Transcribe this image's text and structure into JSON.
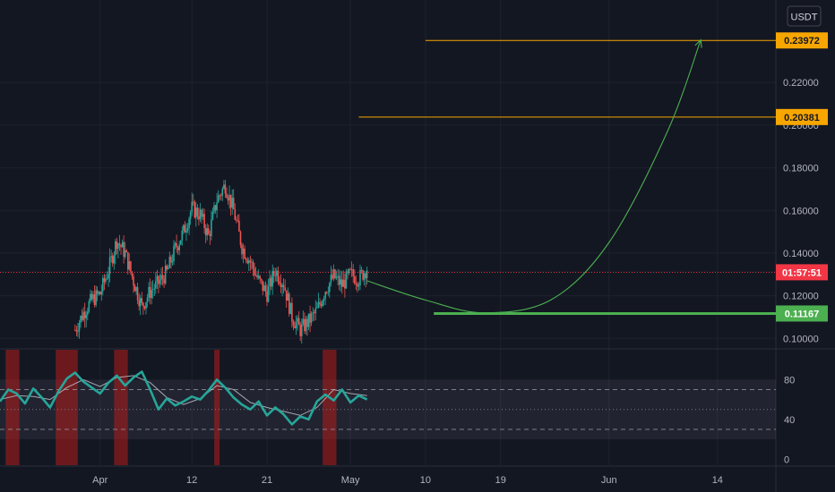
{
  "currency_label": "USDT",
  "colors": {
    "background": "#131722",
    "grid": "#1e222d",
    "axis_text": "#b2b5be",
    "candle_up": "#26a69a",
    "candle_down": "#ef5350",
    "target_line": "#f7a600",
    "support_line": "#4caf50",
    "projection_curve": "#4caf50",
    "current_price": "#f23645",
    "rsi_line": "#26a69a",
    "rsi_signal": "#d1d4dc",
    "rsi_highlight": "#b71c1c"
  },
  "chart_data": [
    {
      "type": "candlestick",
      "pair_currency": "USDT",
      "x_tick_labels": [
        "Apr",
        "12",
        "21",
        "May",
        "10",
        "19",
        "Jun",
        "14"
      ],
      "x_tick_dates": [
        "2024-04-01",
        "2024-04-12",
        "2024-04-21",
        "2024-05-01",
        "2024-05-10",
        "2024-05-19",
        "2024-06-01",
        "2024-06-14"
      ],
      "y_tick_labels": [
        "0.10000",
        "0.12000",
        "0.14000",
        "0.16000",
        "0.18000",
        "0.20000",
        "0.22000"
      ],
      "y_range": [
        0.0955,
        0.2545
      ],
      "x_range": [
        "2024-03-20",
        "2024-06-21"
      ],
      "candles_path": [
        [
          "2024-03-29",
          0.104
        ],
        [
          "2024-03-30",
          0.112
        ],
        [
          "2024-03-31",
          0.118
        ],
        [
          "2024-04-01",
          0.121
        ],
        [
          "2024-04-02",
          0.132
        ],
        [
          "2024-04-03",
          0.146
        ],
        [
          "2024-04-04",
          0.14
        ],
        [
          "2024-04-05",
          0.127
        ],
        [
          "2024-04-06",
          0.115
        ],
        [
          "2024-04-07",
          0.122
        ],
        [
          "2024-04-08",
          0.126
        ],
        [
          "2024-04-09",
          0.131
        ],
        [
          "2024-04-10",
          0.142
        ],
        [
          "2024-04-11",
          0.15
        ],
        [
          "2024-04-12",
          0.161
        ],
        [
          "2024-04-13",
          0.158
        ],
        [
          "2024-04-14",
          0.148
        ],
        [
          "2024-04-15",
          0.165
        ],
        [
          "2024-04-16",
          0.172
        ],
        [
          "2024-04-17",
          0.16
        ],
        [
          "2024-04-18",
          0.143
        ],
        [
          "2024-04-19",
          0.136
        ],
        [
          "2024-04-20",
          0.127
        ],
        [
          "2024-04-21",
          0.121
        ],
        [
          "2024-04-22",
          0.132
        ],
        [
          "2024-04-23",
          0.126
        ],
        [
          "2024-04-24",
          0.11
        ],
        [
          "2024-04-25",
          0.104
        ],
        [
          "2024-04-26",
          0.108
        ],
        [
          "2024-04-27",
          0.113
        ],
        [
          "2024-04-28",
          0.123
        ],
        [
          "2024-04-29",
          0.129
        ],
        [
          "2024-04-30",
          0.125
        ],
        [
          "2024-05-01",
          0.13
        ],
        [
          "2024-05-02",
          0.128
        ],
        [
          "2024-05-03",
          0.133
        ]
      ],
      "horizontal_levels": [
        {
          "price": 0.23972,
          "label": "0.23972",
          "role": "target",
          "start": "2024-05-10"
        },
        {
          "price": 0.20381,
          "label": "0.20381",
          "role": "target",
          "start": "2024-05-02"
        },
        {
          "price": 0.11167,
          "label": "0.11167",
          "role": "support",
          "start": "2024-05-11"
        }
      ],
      "current_price": {
        "price": 0.131,
        "countdown": "01:57:51"
      },
      "projection_curve": [
        [
          "2024-05-03",
          0.127
        ],
        [
          "2024-05-10",
          0.118
        ],
        [
          "2024-05-17",
          0.112
        ],
        [
          "2024-05-25",
          0.118
        ],
        [
          "2024-06-01",
          0.145
        ],
        [
          "2024-06-08",
          0.197
        ],
        [
          "2024-06-12",
          0.24
        ]
      ]
    },
    {
      "type": "line",
      "indicator": "RSI",
      "y_tick_labels": [
        "0",
        "40",
        "80"
      ],
      "y_range": [
        -6,
        110
      ],
      "band": {
        "upper": 80,
        "lower": 20
      },
      "dashed_levels": [
        70,
        30
      ],
      "dotted_level": 50,
      "rsi_points": [
        [
          "2024-03-20",
          58
        ],
        [
          "2024-03-21",
          70
        ],
        [
          "2024-03-22",
          66
        ],
        [
          "2024-03-23",
          56
        ],
        [
          "2024-03-24",
          71
        ],
        [
          "2024-03-25",
          62
        ],
        [
          "2024-03-26",
          52
        ],
        [
          "2024-03-27",
          68
        ],
        [
          "2024-03-28",
          81
        ],
        [
          "2024-03-29",
          87
        ],
        [
          "2024-03-30",
          78
        ],
        [
          "2024-03-31",
          72
        ],
        [
          "2024-04-01",
          66
        ],
        [
          "2024-04-02",
          77
        ],
        [
          "2024-04-03",
          84
        ],
        [
          "2024-04-04",
          74
        ],
        [
          "2024-04-05",
          82
        ],
        [
          "2024-04-06",
          88
        ],
        [
          "2024-04-07",
          70
        ],
        [
          "2024-04-08",
          50
        ],
        [
          "2024-04-09",
          61
        ],
        [
          "2024-04-10",
          54
        ],
        [
          "2024-04-11",
          58
        ],
        [
          "2024-04-12",
          63
        ],
        [
          "2024-04-13",
          60
        ],
        [
          "2024-04-14",
          69
        ],
        [
          "2024-04-15",
          80
        ],
        [
          "2024-04-16",
          72
        ],
        [
          "2024-04-17",
          62
        ],
        [
          "2024-04-18",
          55
        ],
        [
          "2024-04-19",
          50
        ],
        [
          "2024-04-20",
          58
        ],
        [
          "2024-04-21",
          44
        ],
        [
          "2024-04-22",
          52
        ],
        [
          "2024-04-23",
          45
        ],
        [
          "2024-04-24",
          35
        ],
        [
          "2024-04-25",
          43
        ],
        [
          "2024-04-26",
          40
        ],
        [
          "2024-04-27",
          58
        ],
        [
          "2024-04-28",
          65
        ],
        [
          "2024-04-29",
          59
        ],
        [
          "2024-04-30",
          70
        ],
        [
          "2024-05-01",
          57
        ],
        [
          "2024-05-02",
          64
        ],
        [
          "2024-05-03",
          60
        ]
      ],
      "signal_points": [
        [
          "2024-03-20",
          60
        ],
        [
          "2024-03-22",
          64
        ],
        [
          "2024-03-24",
          63
        ],
        [
          "2024-03-26",
          60
        ],
        [
          "2024-03-28",
          72
        ],
        [
          "2024-03-30",
          80
        ],
        [
          "2024-04-01",
          73
        ],
        [
          "2024-04-03",
          82
        ],
        [
          "2024-04-05",
          84
        ],
        [
          "2024-04-07",
          77
        ],
        [
          "2024-04-09",
          62
        ],
        [
          "2024-04-11",
          55
        ],
        [
          "2024-04-13",
          61
        ],
        [
          "2024-04-15",
          74
        ],
        [
          "2024-04-17",
          70
        ],
        [
          "2024-04-19",
          57
        ],
        [
          "2024-04-21",
          52
        ],
        [
          "2024-04-23",
          48
        ],
        [
          "2024-04-25",
          44
        ],
        [
          "2024-04-27",
          52
        ],
        [
          "2024-04-29",
          70
        ],
        [
          "2024-05-01",
          66
        ],
        [
          "2024-05-03",
          64
        ]
      ],
      "highlight_periods": [
        [
          "2024-03-21",
          "2024-03-22"
        ],
        [
          "2024-03-27",
          "2024-03-29"
        ],
        [
          "2024-04-03",
          "2024-04-04"
        ],
        [
          "2024-04-15",
          "2024-04-15"
        ],
        [
          "2024-04-28",
          "2024-04-29"
        ]
      ]
    }
  ]
}
